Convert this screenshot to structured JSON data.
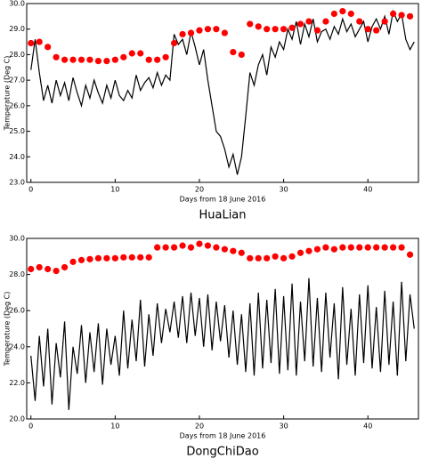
{
  "chart_data": [
    {
      "type": "line",
      "title": "HuaLian",
      "x_label": "Days from 18 June 2016",
      "y_label": "Temperature (Deg C)",
      "xlim": [
        -0.5,
        46
      ],
      "xticks": [
        0,
        10,
        20,
        30,
        40
      ],
      "ylim": [
        23,
        30
      ],
      "yticks": [
        {
          "value": 23,
          "label": "23.0"
        },
        {
          "value": 24,
          "label": "24.0"
        },
        {
          "value": 25,
          "label": "25.0"
        },
        {
          "value": 26,
          "label": "26.0"
        },
        {
          "value": 27,
          "label": "27.0"
        },
        {
          "value": 28,
          "label": "28.0"
        },
        {
          "value": 29,
          "label": "29.0"
        },
        {
          "value": 30,
          "label": "30.0"
        }
      ],
      "series": [
        {
          "style": "line",
          "color": "#000000",
          "x": [
            0,
            0.5,
            1,
            1.5,
            2,
            2.5,
            3,
            3.5,
            4,
            4.5,
            5,
            5.5,
            6,
            6.5,
            7,
            7.5,
            8,
            8.5,
            9,
            9.5,
            10,
            10.5,
            11,
            11.5,
            12,
            12.5,
            13,
            13.5,
            14,
            14.5,
            15,
            15.5,
            16,
            16.5,
            17,
            17.5,
            18,
            18.5,
            19,
            19.5,
            20,
            20.5,
            21,
            21.5,
            22,
            22.5,
            23,
            23.5,
            24,
            24.5,
            25,
            25.5,
            26,
            26.5,
            27,
            27.5,
            28,
            28.5,
            29,
            29.5,
            30,
            30.5,
            31,
            31.5,
            32,
            32.5,
            33,
            33.5,
            34,
            34.5,
            35,
            35.5,
            36,
            36.5,
            37,
            37.5,
            38,
            38.5,
            39,
            39.5,
            40,
            40.5,
            41,
            41.5,
            42,
            42.5,
            43,
            43.5,
            44,
            44.5,
            45,
            45.5
          ],
          "values": [
            27.4,
            28.6,
            27.3,
            26.2,
            26.8,
            26.1,
            27.0,
            26.4,
            26.9,
            26.2,
            27.1,
            26.5,
            26.0,
            26.8,
            26.3,
            27.0,
            26.5,
            26.1,
            26.8,
            26.3,
            27.0,
            26.4,
            26.2,
            26.6,
            26.3,
            27.2,
            26.6,
            26.9,
            27.1,
            26.7,
            27.3,
            26.8,
            27.2,
            27.0,
            28.8,
            28.4,
            28.6,
            28.0,
            28.9,
            28.3,
            27.6,
            28.2,
            27.0,
            26.0,
            25.0,
            24.8,
            24.3,
            23.6,
            24.1,
            23.3,
            24.0,
            25.6,
            27.3,
            26.8,
            27.6,
            28.0,
            27.2,
            28.3,
            27.9,
            28.5,
            28.2,
            29.0,
            28.6,
            29.3,
            28.4,
            29.2,
            28.7,
            29.4,
            28.5,
            28.9,
            29.0,
            28.6,
            29.1,
            28.8,
            29.4,
            28.9,
            29.2,
            28.7,
            29.0,
            29.3,
            28.5,
            29.1,
            29.4,
            29.0,
            29.5,
            28.8,
            29.7,
            29.3,
            29.6,
            28.6,
            28.2,
            28.5
          ]
        },
        {
          "style": "markers",
          "color": "#ff0000",
          "x": [
            0,
            1,
            2,
            3,
            4,
            5,
            6,
            7,
            8,
            9,
            10,
            11,
            12,
            13,
            14,
            15,
            16,
            17,
            18,
            19,
            20,
            21,
            22,
            23,
            24,
            25,
            26,
            27,
            28,
            29,
            30,
            31,
            32,
            33,
            34,
            35,
            36,
            37,
            38,
            39,
            40,
            41,
            42,
            43,
            44,
            45
          ],
          "values": [
            28.45,
            28.5,
            28.3,
            27.9,
            27.8,
            27.8,
            27.8,
            27.8,
            27.75,
            27.75,
            27.8,
            27.9,
            28.05,
            28.05,
            27.8,
            27.8,
            27.9,
            28.45,
            28.8,
            28.85,
            28.95,
            29.0,
            29.0,
            28.85,
            28.1,
            28.0,
            29.2,
            29.1,
            29.0,
            29.0,
            29.0,
            29.05,
            29.2,
            29.3,
            28.95,
            29.3,
            29.6,
            29.7,
            29.6,
            29.3,
            29.0,
            28.95,
            29.3,
            29.6,
            29.55,
            29.5
          ]
        }
      ]
    },
    {
      "type": "line",
      "title": "DongChiDao",
      "x_label": "Days from 18 June 2016",
      "y_label": "Temperature (Deg C)",
      "xlim": [
        -0.5,
        46
      ],
      "xticks": [
        0,
        10,
        20,
        30,
        40
      ],
      "ylim": [
        20,
        30
      ],
      "yticks": [
        {
          "value": 20,
          "label": "20.0"
        },
        {
          "value": 22,
          "label": "22.0"
        },
        {
          "value": 24,
          "label": "24.0"
        },
        {
          "value": 26,
          "label": "26.0"
        },
        {
          "value": 28,
          "label": "28.0"
        },
        {
          "value": 30,
          "label": "30.0"
        }
      ],
      "series": [
        {
          "style": "line",
          "color": "#000000",
          "x": [
            0,
            0.5,
            1,
            1.5,
            2,
            2.5,
            3,
            3.5,
            4,
            4.5,
            5,
            5.5,
            6,
            6.5,
            7,
            7.5,
            8,
            8.5,
            9,
            9.5,
            10,
            10.5,
            11,
            11.5,
            12,
            12.5,
            13,
            13.5,
            14,
            14.5,
            15,
            15.5,
            16,
            16.5,
            17,
            17.5,
            18,
            18.5,
            19,
            19.5,
            20,
            20.5,
            21,
            21.5,
            22,
            22.5,
            23,
            23.5,
            24,
            24.5,
            25,
            25.5,
            26,
            26.5,
            27,
            27.5,
            28,
            28.5,
            29,
            29.5,
            30,
            30.5,
            31,
            31.5,
            32,
            32.5,
            33,
            33.5,
            34,
            34.5,
            35,
            35.5,
            36,
            36.5,
            37,
            37.5,
            38,
            38.5,
            39,
            39.5,
            40,
            40.5,
            41,
            41.5,
            42,
            42.5,
            43,
            43.5,
            44,
            44.5,
            45,
            45.5
          ],
          "values": [
            23.5,
            21.0,
            24.6,
            21.8,
            25.0,
            20.8,
            24.2,
            22.3,
            25.4,
            20.5,
            24.0,
            22.5,
            25.2,
            22.0,
            24.8,
            22.6,
            25.3,
            21.9,
            25.0,
            23.0,
            24.6,
            22.4,
            26.0,
            22.8,
            25.5,
            23.2,
            26.6,
            22.9,
            25.8,
            23.5,
            26.4,
            24.2,
            26.1,
            24.8,
            26.5,
            24.5,
            26.8,
            24.2,
            27.0,
            24.6,
            26.7,
            24.0,
            26.9,
            23.8,
            26.5,
            24.3,
            26.3,
            23.4,
            26.0,
            23.0,
            25.8,
            22.6,
            26.4,
            22.4,
            27.0,
            22.8,
            26.6,
            23.1,
            27.2,
            22.5,
            26.8,
            22.7,
            27.5,
            22.4,
            26.5,
            23.2,
            27.8,
            22.9,
            26.7,
            22.6,
            27.0,
            23.4,
            26.4,
            22.2,
            27.3,
            23.0,
            26.1,
            22.4,
            26.9,
            23.1,
            27.4,
            22.8,
            26.2,
            22.6,
            27.1,
            23.0,
            26.5,
            22.4,
            27.6,
            23.2,
            26.9,
            25.0
          ]
        },
        {
          "style": "markers",
          "color": "#ff0000",
          "x": [
            0,
            1,
            2,
            3,
            4,
            5,
            6,
            7,
            8,
            9,
            10,
            11,
            12,
            13,
            14,
            15,
            16,
            17,
            18,
            19,
            20,
            21,
            22,
            23,
            24,
            25,
            26,
            27,
            28,
            29,
            30,
            31,
            32,
            33,
            34,
            35,
            36,
            37,
            38,
            39,
            40,
            41,
            42,
            43,
            44,
            45
          ],
          "values": [
            28.3,
            28.4,
            28.3,
            28.2,
            28.4,
            28.7,
            28.8,
            28.85,
            28.9,
            28.9,
            28.9,
            28.95,
            28.95,
            28.95,
            28.95,
            29.5,
            29.5,
            29.5,
            29.6,
            29.5,
            29.7,
            29.6,
            29.5,
            29.4,
            29.3,
            29.2,
            28.9,
            28.9,
            28.9,
            29.0,
            28.9,
            29.0,
            29.2,
            29.3,
            29.4,
            29.5,
            29.4,
            29.5,
            29.5,
            29.5,
            29.5,
            29.5,
            29.5,
            29.5,
            29.5,
            29.1
          ]
        }
      ]
    }
  ]
}
